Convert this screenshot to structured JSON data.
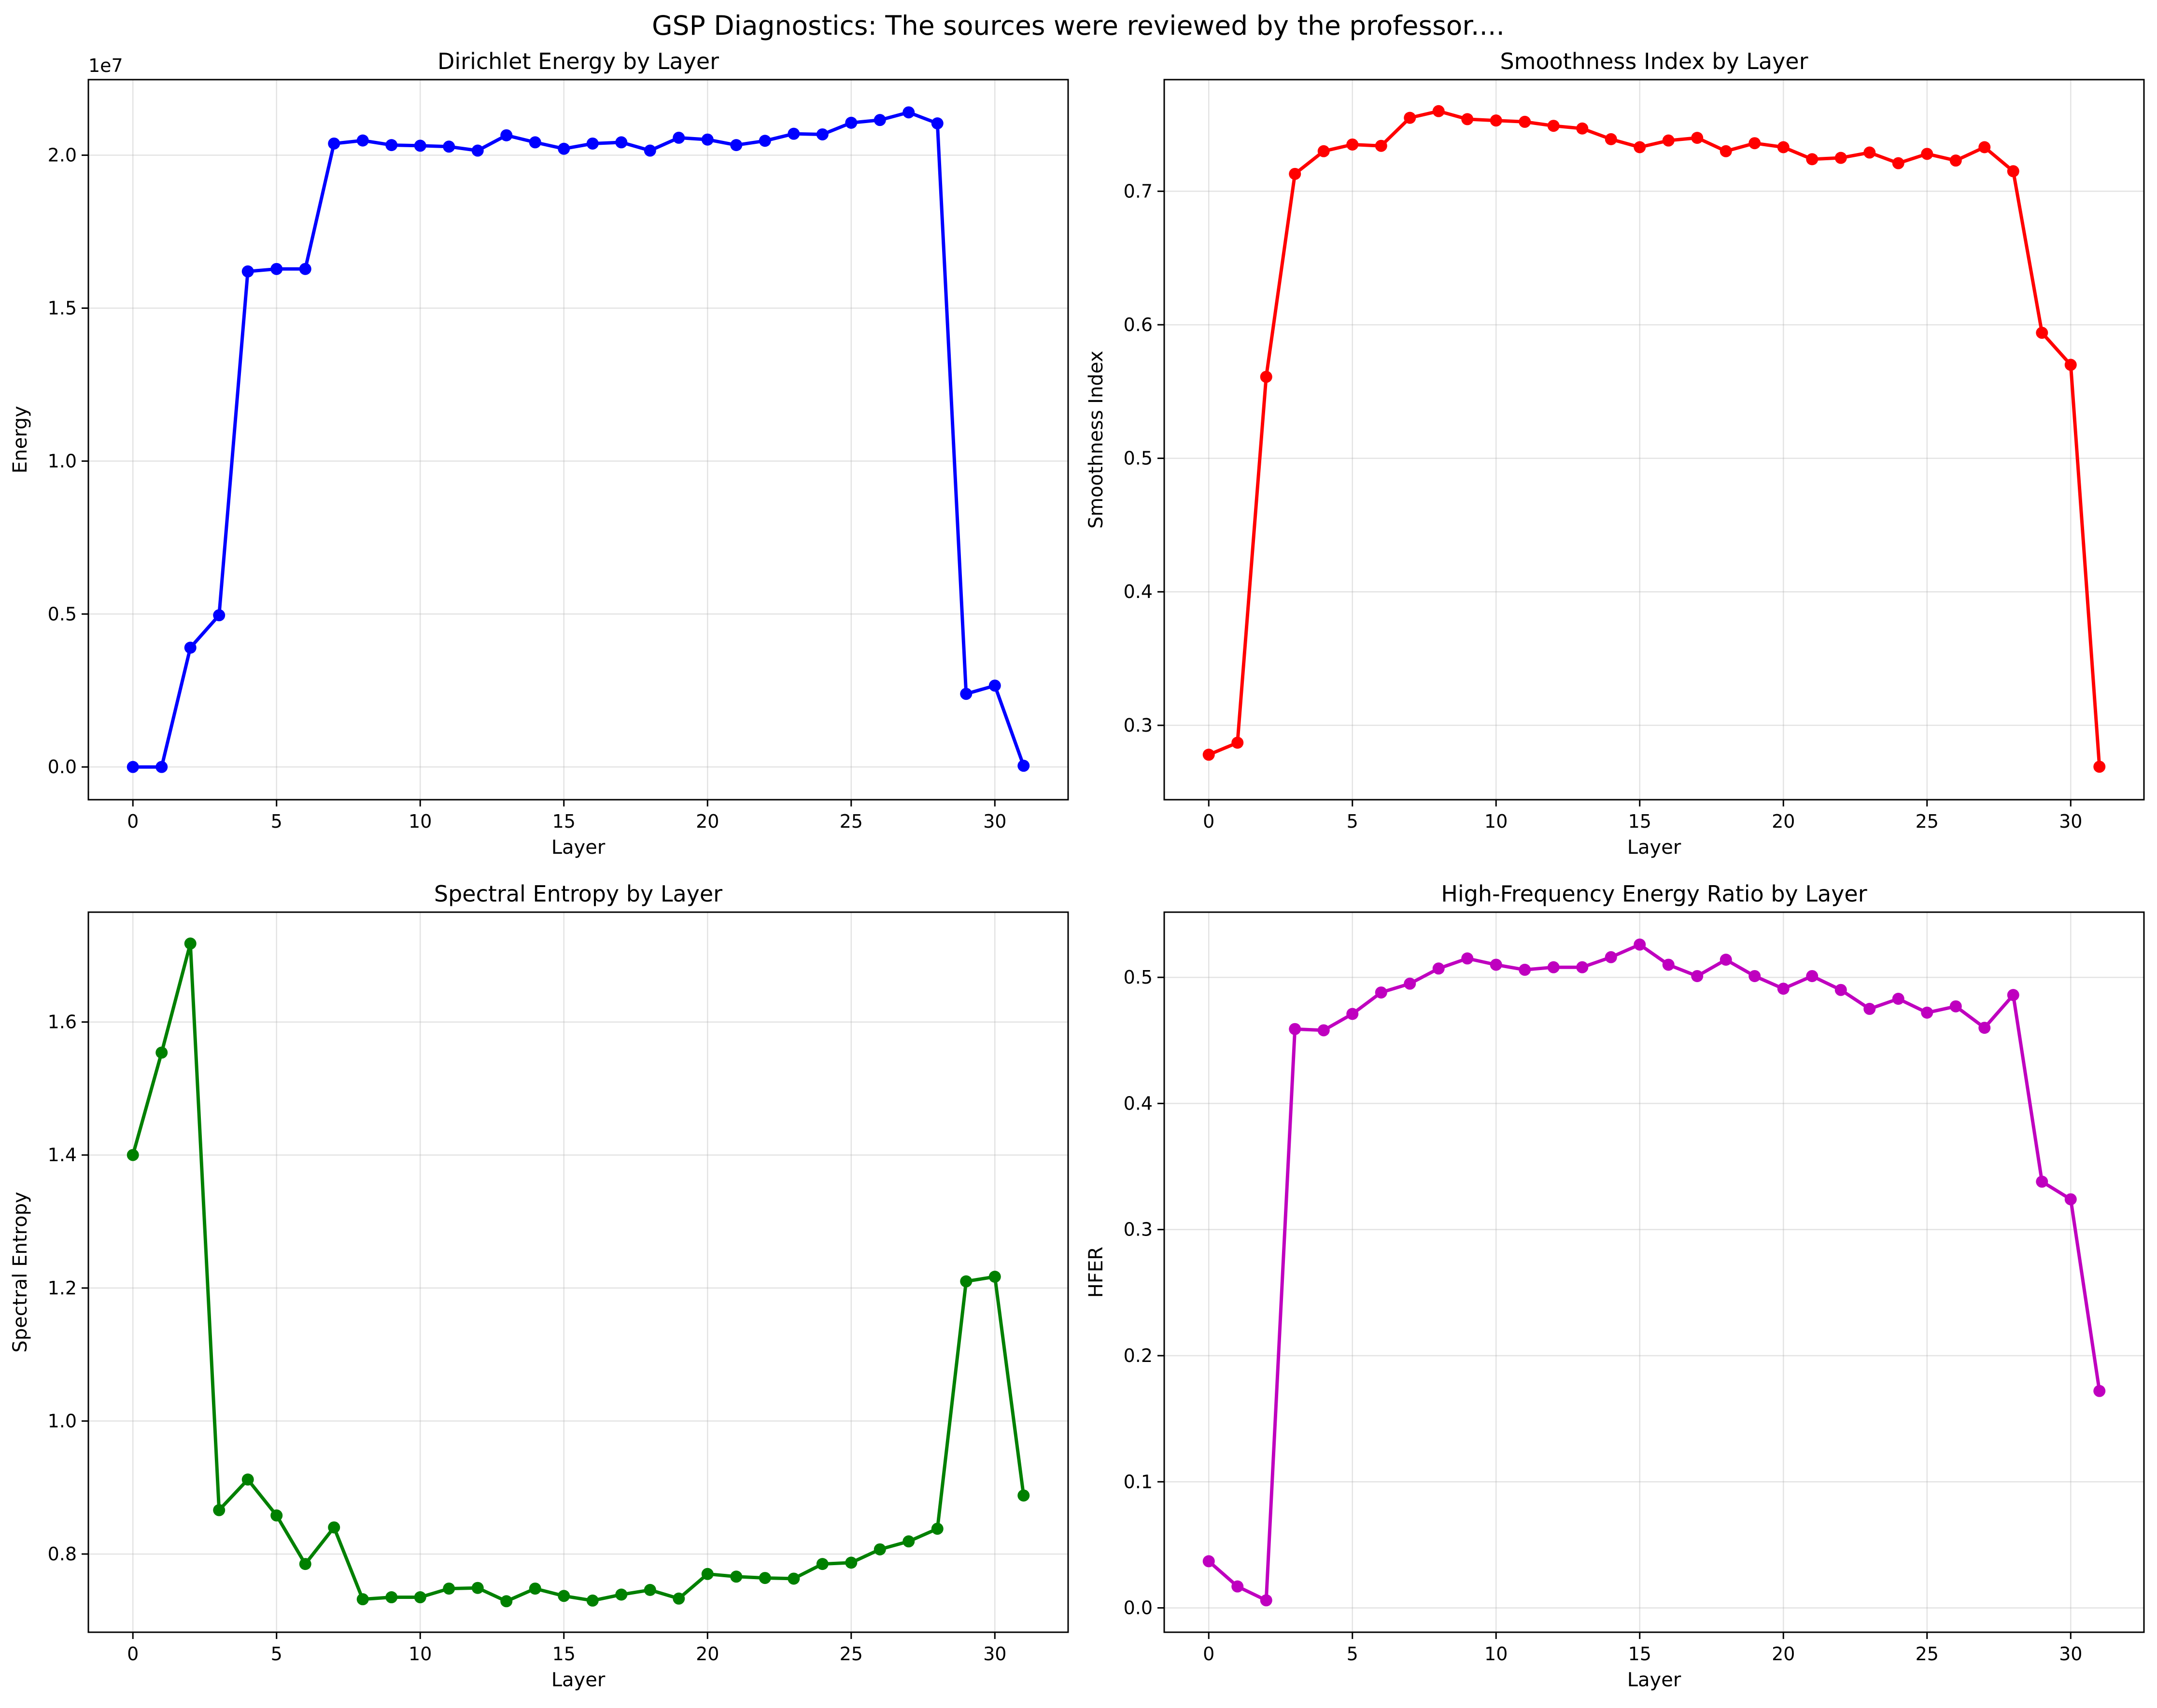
{
  "figure": {
    "suptitle": "GSP Diagnostics: The sources were reviewed by the professor...."
  },
  "chart_data": [
    {
      "type": "line",
      "title": "Dirichlet Energy by Layer",
      "xlabel": "Layer",
      "ylabel": "Energy",
      "offset_label": "1e7",
      "color": "#0000ff",
      "grid": true,
      "xlim": [
        -1.55,
        32.55
      ],
      "ylim": [
        -1070000,
        22470000
      ],
      "xticks": [
        0,
        5,
        10,
        15,
        20,
        25,
        30
      ],
      "xtick_labels": [
        "0",
        "5",
        "10",
        "15",
        "20",
        "25",
        "30"
      ],
      "yticks": [
        0,
        5000000,
        10000000,
        15000000,
        20000000
      ],
      "ytick_labels": [
        "0.0",
        "0.5",
        "1.0",
        "1.5",
        "2.0"
      ],
      "x": [
        0,
        1,
        2,
        3,
        4,
        5,
        6,
        7,
        8,
        9,
        10,
        11,
        12,
        13,
        14,
        15,
        16,
        17,
        18,
        19,
        20,
        21,
        22,
        23,
        24,
        25,
        26,
        27,
        28,
        29,
        30,
        31
      ],
      "y": [
        0,
        0,
        3900000,
        4960000,
        16200000,
        16280000,
        16280000,
        20380000,
        20480000,
        20330000,
        20310000,
        20280000,
        20150000,
        20650000,
        20420000,
        20210000,
        20380000,
        20420000,
        20150000,
        20570000,
        20510000,
        20330000,
        20470000,
        20700000,
        20680000,
        21060000,
        21150000,
        21400000,
        21040000,
        2390000,
        2660000,
        40000
      ]
    },
    {
      "type": "line",
      "title": "Smoothness Index by Layer",
      "xlabel": "Layer",
      "ylabel": "Smoothness Index",
      "color": "#ff0000",
      "grid": true,
      "xlim": [
        -1.55,
        32.55
      ],
      "ylim": [
        0.2443,
        0.7836
      ],
      "xticks": [
        0,
        5,
        10,
        15,
        20,
        25,
        30
      ],
      "xtick_labels": [
        "0",
        "5",
        "10",
        "15",
        "20",
        "25",
        "30"
      ],
      "yticks": [
        0.3,
        0.4,
        0.5,
        0.6,
        0.7
      ],
      "ytick_labels": [
        "0.3",
        "0.4",
        "0.5",
        "0.6",
        "0.7"
      ],
      "x": [
        0,
        1,
        2,
        3,
        4,
        5,
        6,
        7,
        8,
        9,
        10,
        11,
        12,
        13,
        14,
        15,
        16,
        17,
        18,
        19,
        20,
        21,
        22,
        23,
        24,
        25,
        26,
        27,
        28,
        29,
        30,
        31
      ],
      "y": [
        0.278,
        0.287,
        0.561,
        0.713,
        0.73,
        0.735,
        0.734,
        0.755,
        0.76,
        0.754,
        0.753,
        0.752,
        0.749,
        0.747,
        0.739,
        0.733,
        0.738,
        0.74,
        0.73,
        0.736,
        0.733,
        0.724,
        0.725,
        0.729,
        0.721,
        0.728,
        0.723,
        0.733,
        0.715,
        0.594,
        0.57,
        0.269
      ]
    },
    {
      "type": "line",
      "title": "Spectral Entropy by Layer",
      "xlabel": "Layer",
      "ylabel": "Spectral Entropy",
      "color": "#008000",
      "grid": true,
      "xlim": [
        -1.55,
        32.55
      ],
      "ylim": [
        0.6824,
        1.7652
      ],
      "xticks": [
        0,
        5,
        10,
        15,
        20,
        25,
        30
      ],
      "xtick_labels": [
        "0",
        "5",
        "10",
        "15",
        "20",
        "25",
        "30"
      ],
      "yticks": [
        0.8,
        1.0,
        1.2,
        1.4,
        1.6
      ],
      "ytick_labels": [
        "0.8",
        "1.0",
        "1.2",
        "1.4",
        "1.6"
      ],
      "x": [
        0,
        1,
        2,
        3,
        4,
        5,
        6,
        7,
        8,
        9,
        10,
        11,
        12,
        13,
        14,
        15,
        16,
        17,
        18,
        19,
        20,
        21,
        22,
        23,
        24,
        25,
        26,
        27,
        28,
        29,
        30,
        31
      ],
      "y": [
        1.4,
        1.554,
        1.718,
        0.866,
        0.912,
        0.858,
        0.785,
        0.84,
        0.732,
        0.735,
        0.735,
        0.748,
        0.749,
        0.729,
        0.748,
        0.737,
        0.73,
        0.739,
        0.746,
        0.733,
        0.77,
        0.766,
        0.764,
        0.763,
        0.785,
        0.787,
        0.807,
        0.819,
        0.838,
        1.21,
        1.217,
        0.888
      ]
    },
    {
      "type": "line",
      "title": "High-Frequency Energy Ratio by Layer",
      "xlabel": "Layer",
      "ylabel": "HFER",
      "color": "#bf00bf",
      "grid": true,
      "xlim": [
        -1.55,
        32.55
      ],
      "ylim": [
        -0.0193,
        0.5517
      ],
      "xticks": [
        0,
        5,
        10,
        15,
        20,
        25,
        30
      ],
      "xtick_labels": [
        "0",
        "5",
        "10",
        "15",
        "20",
        "25",
        "30"
      ],
      "yticks": [
        0.0,
        0.1,
        0.2,
        0.3,
        0.4,
        0.5
      ],
      "ytick_labels": [
        "0.0",
        "0.1",
        "0.2",
        "0.3",
        "0.4",
        "0.5"
      ],
      "x": [
        0,
        1,
        2,
        3,
        4,
        5,
        6,
        7,
        8,
        9,
        10,
        11,
        12,
        13,
        14,
        15,
        16,
        17,
        18,
        19,
        20,
        21,
        22,
        23,
        24,
        25,
        26,
        27,
        28,
        29,
        30,
        31
      ],
      "y": [
        0.037,
        0.017,
        0.006,
        0.459,
        0.458,
        0.471,
        0.488,
        0.495,
        0.507,
        0.515,
        0.51,
        0.506,
        0.508,
        0.508,
        0.516,
        0.526,
        0.51,
        0.501,
        0.514,
        0.501,
        0.491,
        0.501,
        0.49,
        0.475,
        0.483,
        0.472,
        0.477,
        0.46,
        0.486,
        0.338,
        0.324,
        0.172
      ]
    }
  ]
}
